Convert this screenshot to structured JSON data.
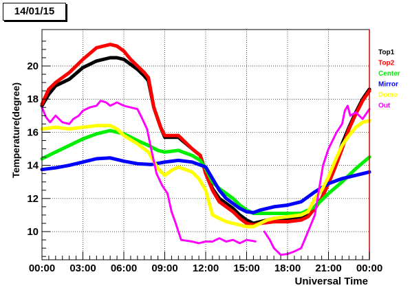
{
  "title": "14/01/15",
  "chart_data": {
    "type": "line",
    "xlabel": "Universal Time",
    "ylabel": "Temperature(degree)",
    "xlim": [
      0,
      24
    ],
    "ylim": [
      8.3,
      22.2
    ],
    "grid": true,
    "legend_position": "right",
    "x_ticks": [
      {
        "value": 0,
        "label": "00:00"
      },
      {
        "value": 3,
        "label": "03:00"
      },
      {
        "value": 6,
        "label": "06:00"
      },
      {
        "value": 9,
        "label": "09:00"
      },
      {
        "value": 12,
        "label": "12:00"
      },
      {
        "value": 15,
        "label": "15:00"
      },
      {
        "value": 18,
        "label": "18:00"
      },
      {
        "value": 21,
        "label": "21:00"
      },
      {
        "value": 24,
        "label": "00:00"
      }
    ],
    "y_ticks": [
      {
        "value": 10,
        "label": "10"
      },
      {
        "value": 12,
        "label": "12"
      },
      {
        "value": 14,
        "label": "14"
      },
      {
        "value": 16,
        "label": "16"
      },
      {
        "value": 18,
        "label": "18"
      },
      {
        "value": 20,
        "label": "20"
      }
    ],
    "series": [
      {
        "name": "Top1",
        "color": "#000000",
        "points": [
          [
            0,
            17.6
          ],
          [
            0.5,
            18.3
          ],
          [
            1,
            18.8
          ],
          [
            2,
            19.2
          ],
          [
            3,
            19.9
          ],
          [
            4,
            20.3
          ],
          [
            5,
            20.5
          ],
          [
            5.5,
            20.5
          ],
          [
            6,
            20.4
          ],
          [
            6.5,
            20.1
          ],
          [
            7,
            19.8
          ],
          [
            7.5,
            19.4
          ],
          [
            7.8,
            19.1
          ],
          [
            8.2,
            17.5
          ],
          [
            8.7,
            16.3
          ],
          [
            9,
            15.7
          ],
          [
            10,
            15.7
          ],
          [
            11,
            15.0
          ],
          [
            11.6,
            14.6
          ],
          [
            12,
            13.6
          ],
          [
            12.5,
            12.6
          ],
          [
            13,
            12.0
          ],
          [
            14,
            11.4
          ],
          [
            14.5,
            11.0
          ],
          [
            15,
            10.7
          ],
          [
            15.5,
            10.5
          ],
          [
            16,
            10.6
          ],
          [
            17,
            10.8
          ],
          [
            18,
            10.8
          ],
          [
            19,
            10.9
          ],
          [
            19.5,
            11.1
          ],
          [
            20,
            11.5
          ],
          [
            20.5,
            12.0
          ],
          [
            21,
            13.0
          ],
          [
            21.5,
            14.0
          ],
          [
            22,
            15.3
          ],
          [
            22.5,
            16.3
          ],
          [
            23,
            17.2
          ],
          [
            23.5,
            18.0
          ],
          [
            24,
            18.6
          ]
        ]
      },
      {
        "name": "Top2",
        "color": "#ff0000",
        "points": [
          [
            0,
            17.7
          ],
          [
            0.5,
            18.6
          ],
          [
            1,
            19.0
          ],
          [
            2,
            19.6
          ],
          [
            3,
            20.4
          ],
          [
            4,
            21.1
          ],
          [
            5,
            21.3
          ],
          [
            5.5,
            21.2
          ],
          [
            6,
            20.9
          ],
          [
            6.5,
            20.4
          ],
          [
            7,
            20.0
          ],
          [
            7.5,
            19.6
          ],
          [
            7.8,
            19.3
          ],
          [
            8.2,
            17.5
          ],
          [
            8.7,
            16.3
          ],
          [
            9,
            15.8
          ],
          [
            10,
            15.8
          ],
          [
            11,
            15.0
          ],
          [
            11.6,
            14.6
          ],
          [
            12,
            13.5
          ],
          [
            12.5,
            12.5
          ],
          [
            13,
            11.8
          ],
          [
            14,
            11.2
          ],
          [
            14.5,
            10.8
          ],
          [
            15,
            10.5
          ],
          [
            15.5,
            10.4
          ],
          [
            16,
            10.5
          ],
          [
            17,
            10.6
          ],
          [
            18,
            10.6
          ],
          [
            19,
            10.7
          ],
          [
            19.5,
            10.9
          ],
          [
            20,
            11.4
          ],
          [
            20.5,
            12.0
          ],
          [
            21,
            12.9
          ],
          [
            21.5,
            13.9
          ],
          [
            22,
            15.0
          ],
          [
            22.5,
            16.2
          ],
          [
            23,
            17.1
          ],
          [
            23.5,
            17.9
          ],
          [
            24,
            18.5
          ]
        ]
      },
      {
        "name": "Center",
        "color": "#00ee00",
        "points": [
          [
            0,
            14.4
          ],
          [
            1,
            14.8
          ],
          [
            2,
            15.2
          ],
          [
            3,
            15.6
          ],
          [
            4,
            15.9
          ],
          [
            5,
            16.1
          ],
          [
            6,
            15.9
          ],
          [
            7,
            15.5
          ],
          [
            7.8,
            15.2
          ],
          [
            8.5,
            14.9
          ],
          [
            9,
            14.8
          ],
          [
            10,
            14.9
          ],
          [
            11,
            14.6
          ],
          [
            11.6,
            14.3
          ],
          [
            12,
            13.8
          ],
          [
            12.5,
            13.0
          ],
          [
            13,
            12.6
          ],
          [
            14,
            12.0
          ],
          [
            14.5,
            11.6
          ],
          [
            15,
            11.3
          ],
          [
            15.5,
            11.1
          ],
          [
            16,
            11.1
          ],
          [
            17,
            11.1
          ],
          [
            18,
            11.1
          ],
          [
            19,
            11.1
          ],
          [
            20,
            11.5
          ],
          [
            21,
            12.3
          ],
          [
            22,
            13.0
          ],
          [
            23,
            13.8
          ],
          [
            24,
            14.5
          ]
        ]
      },
      {
        "name": "Mirror",
        "color": "#0000ff",
        "points": [
          [
            0,
            13.75
          ],
          [
            1,
            13.85
          ],
          [
            2,
            14.0
          ],
          [
            3,
            14.2
          ],
          [
            4,
            14.4
          ],
          [
            5,
            14.45
          ],
          [
            6,
            14.25
          ],
          [
            7,
            14.1
          ],
          [
            8,
            14.05
          ],
          [
            9,
            14.2
          ],
          [
            10,
            14.3
          ],
          [
            11,
            14.2
          ],
          [
            12,
            13.9
          ],
          [
            12.5,
            13.2
          ],
          [
            13,
            12.5
          ],
          [
            13.5,
            12.0
          ],
          [
            14,
            11.7
          ],
          [
            14.5,
            11.4
          ],
          [
            15,
            11.2
          ],
          [
            15.5,
            11.15
          ],
          [
            16,
            11.3
          ],
          [
            17,
            11.5
          ],
          [
            18,
            11.6
          ],
          [
            19,
            11.8
          ],
          [
            19.5,
            12.1
          ],
          [
            20,
            12.4
          ],
          [
            21,
            12.9
          ],
          [
            22,
            13.2
          ],
          [
            23,
            13.4
          ],
          [
            24,
            13.6
          ]
        ]
      },
      {
        "name": "Dome",
        "color": "#ffff00",
        "points": [
          [
            0,
            16.2
          ],
          [
            1,
            16.3
          ],
          [
            2,
            16.2
          ],
          [
            3,
            16.3
          ],
          [
            4,
            16.4
          ],
          [
            5,
            16.4
          ],
          [
            5.5,
            16.2
          ],
          [
            6,
            15.8
          ],
          [
            7,
            15.3
          ],
          [
            7.8,
            14.8
          ],
          [
            8.5,
            13.8
          ],
          [
            9,
            13.4
          ],
          [
            9.5,
            13.7
          ],
          [
            10,
            13.9
          ],
          [
            11,
            13.6
          ],
          [
            11.5,
            13.2
          ],
          [
            12,
            12.5
          ],
          [
            12.5,
            11.0
          ],
          [
            13,
            10.8
          ],
          [
            13.5,
            10.6
          ],
          [
            14,
            10.5
          ],
          [
            15,
            10.3
          ],
          [
            15.5,
            10.3
          ],
          [
            16,
            10.5
          ],
          [
            16.5,
            10.7
          ],
          [
            17,
            10.8
          ],
          [
            18,
            10.9
          ],
          [
            19,
            11.0
          ],
          [
            19.5,
            11.2
          ],
          [
            20,
            12.0
          ],
          [
            20.5,
            12.5
          ],
          [
            21,
            13.3
          ],
          [
            21.5,
            14.3
          ],
          [
            22,
            15.2
          ],
          [
            22.5,
            15.8
          ],
          [
            23,
            16.3
          ],
          [
            23.5,
            16.6
          ],
          [
            24,
            16.7
          ]
        ]
      },
      {
        "name": "Out",
        "color": "#ff00ff",
        "points": [
          [
            0,
            17.5
          ],
          [
            0.3,
            16.9
          ],
          [
            0.6,
            16.6
          ],
          [
            1,
            17.0
          ],
          [
            1.5,
            16.6
          ],
          [
            2,
            16.5
          ],
          [
            2.3,
            16.8
          ],
          [
            2.7,
            17.0
          ],
          [
            3,
            17.3
          ],
          [
            3.5,
            17.5
          ],
          [
            4,
            17.6
          ],
          [
            4.3,
            17.9
          ],
          [
            4.7,
            17.8
          ],
          [
            5,
            17.6
          ],
          [
            5.5,
            17.8
          ],
          [
            6,
            17.6
          ],
          [
            6.5,
            17.5
          ],
          [
            7,
            17.4
          ],
          [
            7.3,
            16.9
          ],
          [
            7.7,
            16.2
          ],
          [
            8,
            15.0
          ],
          [
            8.4,
            13.5
          ],
          [
            8.8,
            12.8
          ],
          [
            9.2,
            12.3
          ],
          [
            9.5,
            11.2
          ],
          [
            9.8,
            10.5
          ],
          [
            10.2,
            9.5
          ],
          [
            11,
            9.4
          ],
          [
            11.5,
            9.3
          ],
          [
            12,
            9.4
          ],
          [
            12.5,
            9.4
          ],
          [
            13,
            9.6
          ],
          [
            13.5,
            9.4
          ],
          [
            14,
            9.5
          ],
          [
            14.5,
            9.3
          ],
          [
            15,
            9.5
          ],
          [
            15.7,
            9.4
          ],
          [
            null,
            null
          ],
          [
            16.3,
            10.0
          ],
          [
            16.7,
            9.5
          ],
          [
            17,
            9.0
          ],
          [
            17.5,
            8.6
          ],
          [
            18,
            8.65
          ],
          [
            18.5,
            8.8
          ],
          [
            19,
            9.0
          ],
          [
            19.5,
            10.0
          ],
          [
            20,
            11.0
          ],
          [
            20.3,
            12.5
          ],
          [
            20.6,
            14.0
          ],
          [
            21,
            15.0
          ],
          [
            21.3,
            15.5
          ],
          [
            21.6,
            16.0
          ],
          [
            22,
            16.5
          ],
          [
            22.2,
            17.3
          ],
          [
            22.4,
            17.6
          ],
          [
            22.6,
            17.0
          ],
          [
            23,
            17.2
          ],
          [
            23.5,
            16.8
          ],
          [
            24,
            17.4
          ]
        ]
      }
    ]
  }
}
